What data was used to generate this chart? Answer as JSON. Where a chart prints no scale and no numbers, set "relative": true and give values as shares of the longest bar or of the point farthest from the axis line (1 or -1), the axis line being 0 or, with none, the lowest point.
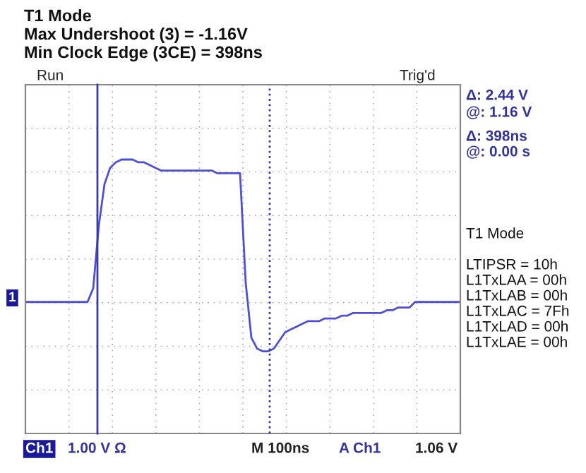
{
  "chart_data": {
    "type": "line",
    "title": "T1 Mode",
    "subtitle": "Max Undershoot (3) = -1.16V",
    "annotations": [
      "Min Clock Edge (3CE) = 398ns",
      "Run",
      "Trig'd",
      "Δ: 2.44 V",
      "@: 1.16 V",
      "Δ: 398ns",
      "@: 0.00 s",
      "T1 Mode",
      "LTIPSR = 10h",
      "L1TxLAA = 00h",
      "L1TxLAB = 00h",
      "L1TxLAC = 7Fh",
      "L1TxLAD = 00h",
      "L1TxLAE = 00h",
      "Ch1",
      "1.00 V Ω",
      "M 100ns",
      "A Ch1",
      "1.06 V",
      "1"
    ],
    "categories": [
      null,
      null,
      null,
      null,
      null,
      null,
      null,
      null,
      null,
      null,
      null,
      null,
      null,
      null,
      null,
      null,
      null,
      null,
      null,
      null,
      null,
      null,
      null,
      null,
      null,
      null,
      null,
      null,
      null,
      null,
      null,
      null,
      null,
      null,
      null,
      null,
      null,
      null,
      null,
      null,
      null,
      null,
      null,
      null,
      null,
      null,
      null,
      null,
      null,
      null,
      null,
      null,
      null,
      null,
      null,
      null,
      null,
      null,
      null,
      null,
      null,
      null,
      null,
      null,
      null,
      null,
      null,
      null,
      null,
      null,
      null,
      null,
      null,
      null,
      null,
      null,
      null,
      null
    ],
    "relative": true,
    "series": [
      {
        "color": "#4f4fcf",
        "values": [
          0.48,
          0.48,
          0.48,
          0.48,
          0.48,
          0.48,
          0.48,
          0.48,
          0.48,
          0.48,
          0.48,
          0.48,
          0.53,
          0.76,
          0.91,
          0.97,
          0.99,
          1,
          1,
          1,
          0.99,
          0.99,
          0.98,
          0.97,
          0.96,
          0.96,
          0.96,
          0.96,
          0.96,
          0.96,
          0.96,
          0.96,
          0.96,
          0.96,
          0.95,
          0.95,
          0.95,
          0.95,
          0.95,
          0.55,
          0.35,
          0.31,
          0.3,
          0.3,
          0.31,
          0.34,
          0.37,
          0.38,
          0.39,
          0.4,
          0.41,
          0.41,
          0.41,
          0.42,
          0.42,
          0.42,
          0.43,
          0.43,
          0.44,
          0.44,
          0.44,
          0.44,
          0.44,
          0.44,
          0.45,
          0.45,
          0.46,
          0.46,
          0.46,
          0.48,
          0.48,
          0.48,
          0.48,
          0.48,
          0.48,
          0.48,
          0.48,
          0.48
        ]
      }
    ],
    "grid": true
  }
}
